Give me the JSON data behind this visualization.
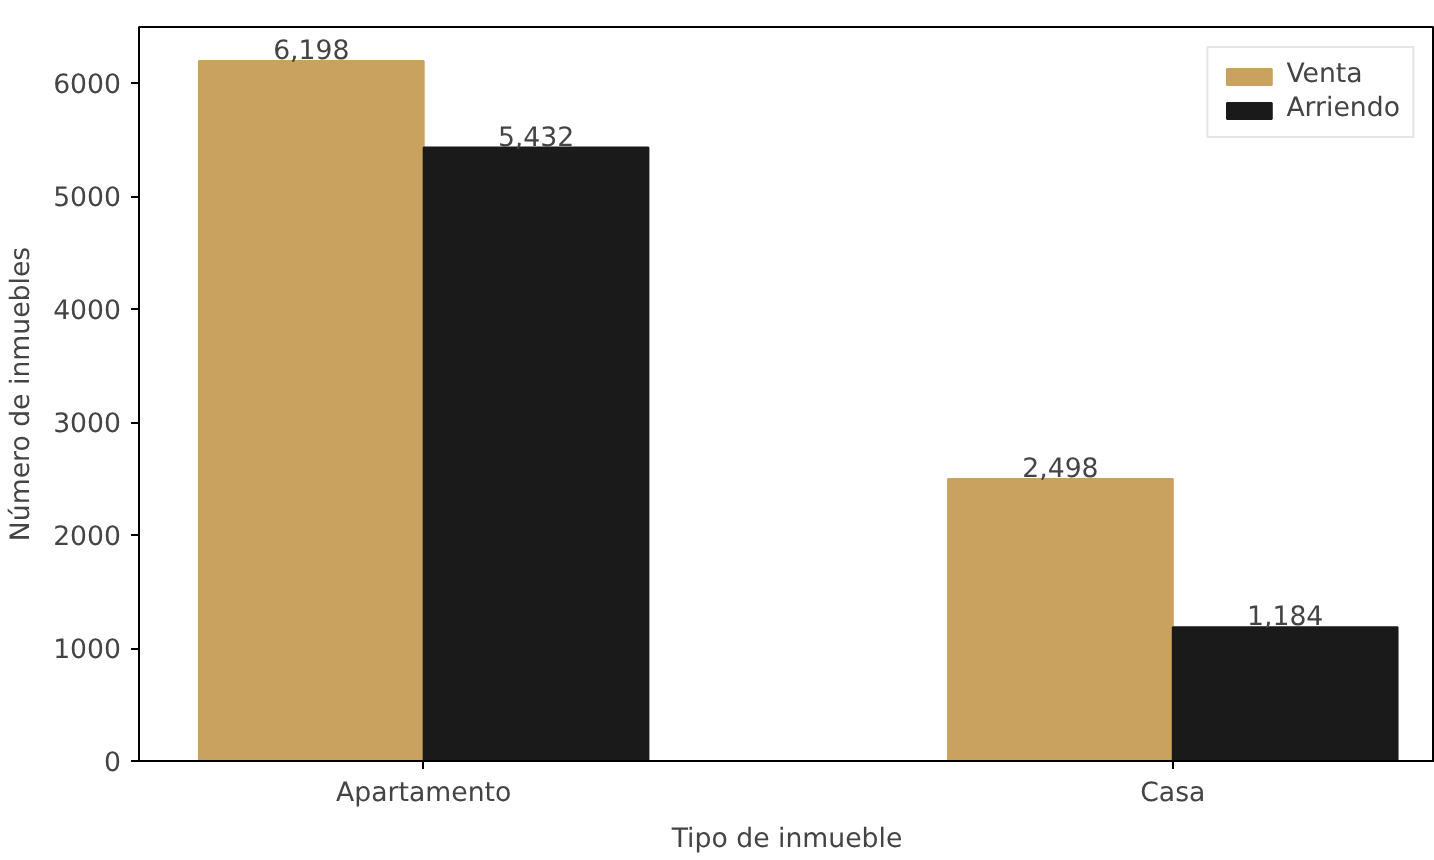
{
  "chart_data": {
    "type": "bar",
    "xlabel": "Tipo de inmueble",
    "ylabel": "Número de inmuebles",
    "categories": [
      "Apartamento",
      "Casa"
    ],
    "series": [
      {
        "name": "Venta",
        "color": "#c8a25e",
        "values": [
          6198,
          2498
        ],
        "value_labels": [
          "6,198",
          "2,498"
        ]
      },
      {
        "name": "Arriendo",
        "color": "#1a1a1a",
        "values": [
          5432,
          1184
        ],
        "value_labels": [
          "5,432",
          "1,184"
        ]
      }
    ],
    "ylim": [
      0,
      6500
    ],
    "yticks": [
      0,
      1000,
      2000,
      3000,
      4000,
      5000,
      6000
    ],
    "legend": "top right",
    "grid": false
  }
}
